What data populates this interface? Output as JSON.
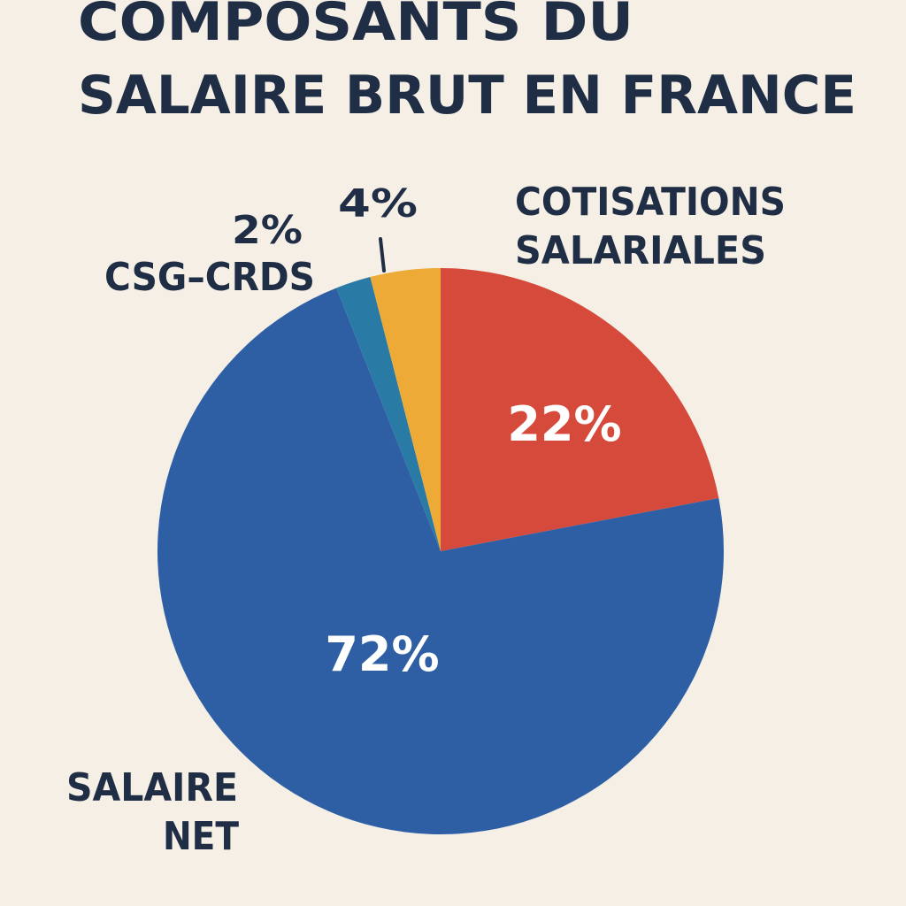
{
  "chart_data": {
    "type": "pie",
    "title_lines": [
      "COMPOSANTS DU",
      "SALAIRE BRUT EN FRANCE"
    ],
    "slices": [
      {
        "label_lines": [
          "COTISATIONS",
          "SALARIALES"
        ],
        "value": 22,
        "value_text": "22%",
        "color": "#d64a3b"
      },
      {
        "label_lines": [
          "SALAIRE",
          "NET"
        ],
        "value": 72,
        "value_text": "72%",
        "color": "#2e5fa5"
      },
      {
        "label_lines": [
          "CSG–CRDS"
        ],
        "value": 2,
        "value_text": "2%",
        "color": "#2a7aa6"
      },
      {
        "label_lines": [],
        "value": 4,
        "value_text": "4%",
        "color": "#eeaa36"
      }
    ]
  },
  "colors": {
    "background": "#f5efe6",
    "text": "#1f2d45"
  }
}
